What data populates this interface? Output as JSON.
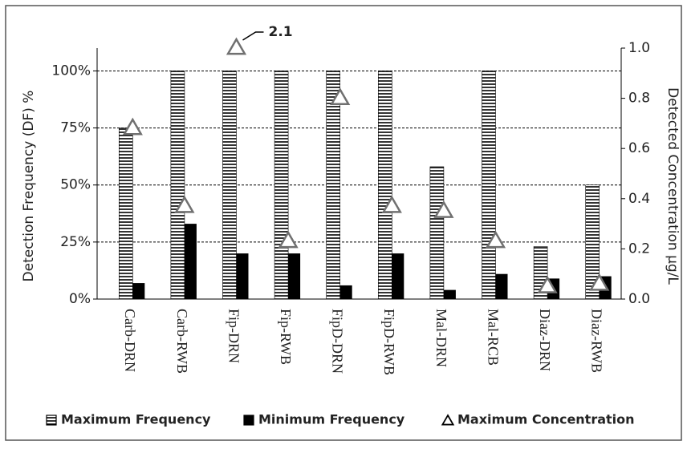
{
  "chart_data": {
    "type": "bar",
    "y_label": "Detection Frequency (DF) %",
    "y2_label": "Detected Concentration µg/L",
    "categories": [
      "Carb-DRN",
      "Carb-RWB",
      "Fip-DRN",
      "Fip-RWB",
      "FipD-DRN",
      "FipD-RWB",
      "Mal-DRN",
      "Mal-RCB",
      "Diaz-DRN",
      "Diaz-RWB"
    ],
    "series": [
      {
        "name": "Maximum Frequency",
        "type": "bar",
        "color": "#000000",
        "pattern": "horizontal-stripes",
        "values": [
          75,
          100,
          100,
          100,
          100,
          100,
          58,
          100,
          23,
          50
        ]
      },
      {
        "name": "Minimum Frequency",
        "type": "bar",
        "color": "#000000",
        "values": [
          7,
          33,
          20,
          20,
          6,
          20,
          4,
          11,
          9,
          10
        ]
      },
      {
        "name": "Maximum Concentration",
        "type": "scatter",
        "marker": "triangle",
        "color": "#707070",
        "axis": "y2",
        "values": [
          0.68,
          0.37,
          1.0,
          0.23,
          0.8,
          0.37,
          0.35,
          0.23,
          0.05,
          0.06
        ]
      }
    ],
    "annotations": [
      {
        "text": "2.1",
        "series": 2,
        "index": 2
      }
    ],
    "ylim": [
      0,
      110
    ],
    "yticks": [
      {
        "value": 0,
        "label": "0%"
      },
      {
        "value": 25,
        "label": "25%"
      },
      {
        "value": 50,
        "label": "50%"
      },
      {
        "value": 75,
        "label": "75%"
      },
      {
        "value": 100,
        "label": "100%"
      }
    ],
    "y2lim": [
      0,
      1.0
    ],
    "y2ticks": [
      {
        "value": 0,
        "label": "0.0"
      },
      0.2,
      0.4,
      0.6,
      0.8,
      {
        "value": 1.0,
        "label": "1.0"
      }
    ],
    "grid": true,
    "legend": "bottom"
  }
}
